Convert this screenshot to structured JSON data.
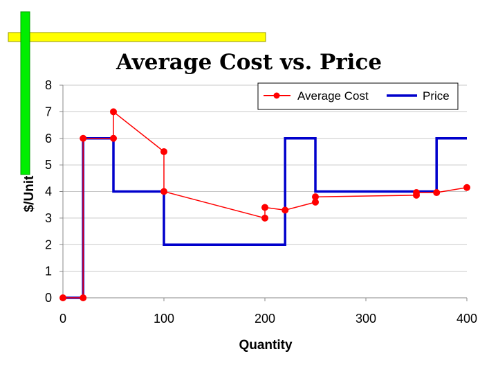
{
  "chart_data": {
    "type": "line",
    "title": "Average Cost vs. Price",
    "xlabel": "Quantity",
    "ylabel": "$/Unit",
    "xlim": [
      0,
      400
    ],
    "ylim": [
      0,
      8
    ],
    "x_ticks": [
      0,
      100,
      200,
      300,
      400
    ],
    "y_ticks": [
      0,
      1,
      2,
      3,
      4,
      5,
      6,
      7,
      8
    ],
    "grid": "horizontal",
    "legend_position": "top-right",
    "series": [
      {
        "name": "Average Cost",
        "color": "#ff0000",
        "marker": "circle",
        "points": [
          [
            0,
            0
          ],
          [
            20,
            0
          ],
          [
            20,
            6
          ],
          [
            50,
            6
          ],
          [
            50,
            7
          ],
          [
            100,
            5.5
          ],
          [
            100,
            4
          ],
          [
            200,
            3
          ],
          [
            200,
            3.4
          ],
          [
            220,
            3.3
          ],
          [
            250,
            3.6
          ],
          [
            250,
            3.8
          ],
          [
            350,
            3.86
          ],
          [
            350,
            3.96
          ],
          [
            370,
            3.96
          ],
          [
            400,
            4.15
          ]
        ]
      },
      {
        "name": "Price",
        "color": "#0000cc",
        "marker": "none",
        "points": [
          [
            0,
            0
          ],
          [
            20,
            0
          ],
          [
            20,
            6
          ],
          [
            50,
            6
          ],
          [
            50,
            4
          ],
          [
            100,
            4
          ],
          [
            100,
            2
          ],
          [
            220,
            2
          ],
          [
            220,
            6
          ],
          [
            250,
            6
          ],
          [
            250,
            4
          ],
          [
            370,
            4
          ],
          [
            370,
            6
          ],
          [
            400,
            6
          ]
        ]
      }
    ]
  },
  "decor": {
    "bar_green": "#00ee00",
    "bar_yellow": "#ffff00",
    "bar_border": "#999900",
    "grid_color": "#c8c8c8",
    "axis_color": "#888888"
  }
}
